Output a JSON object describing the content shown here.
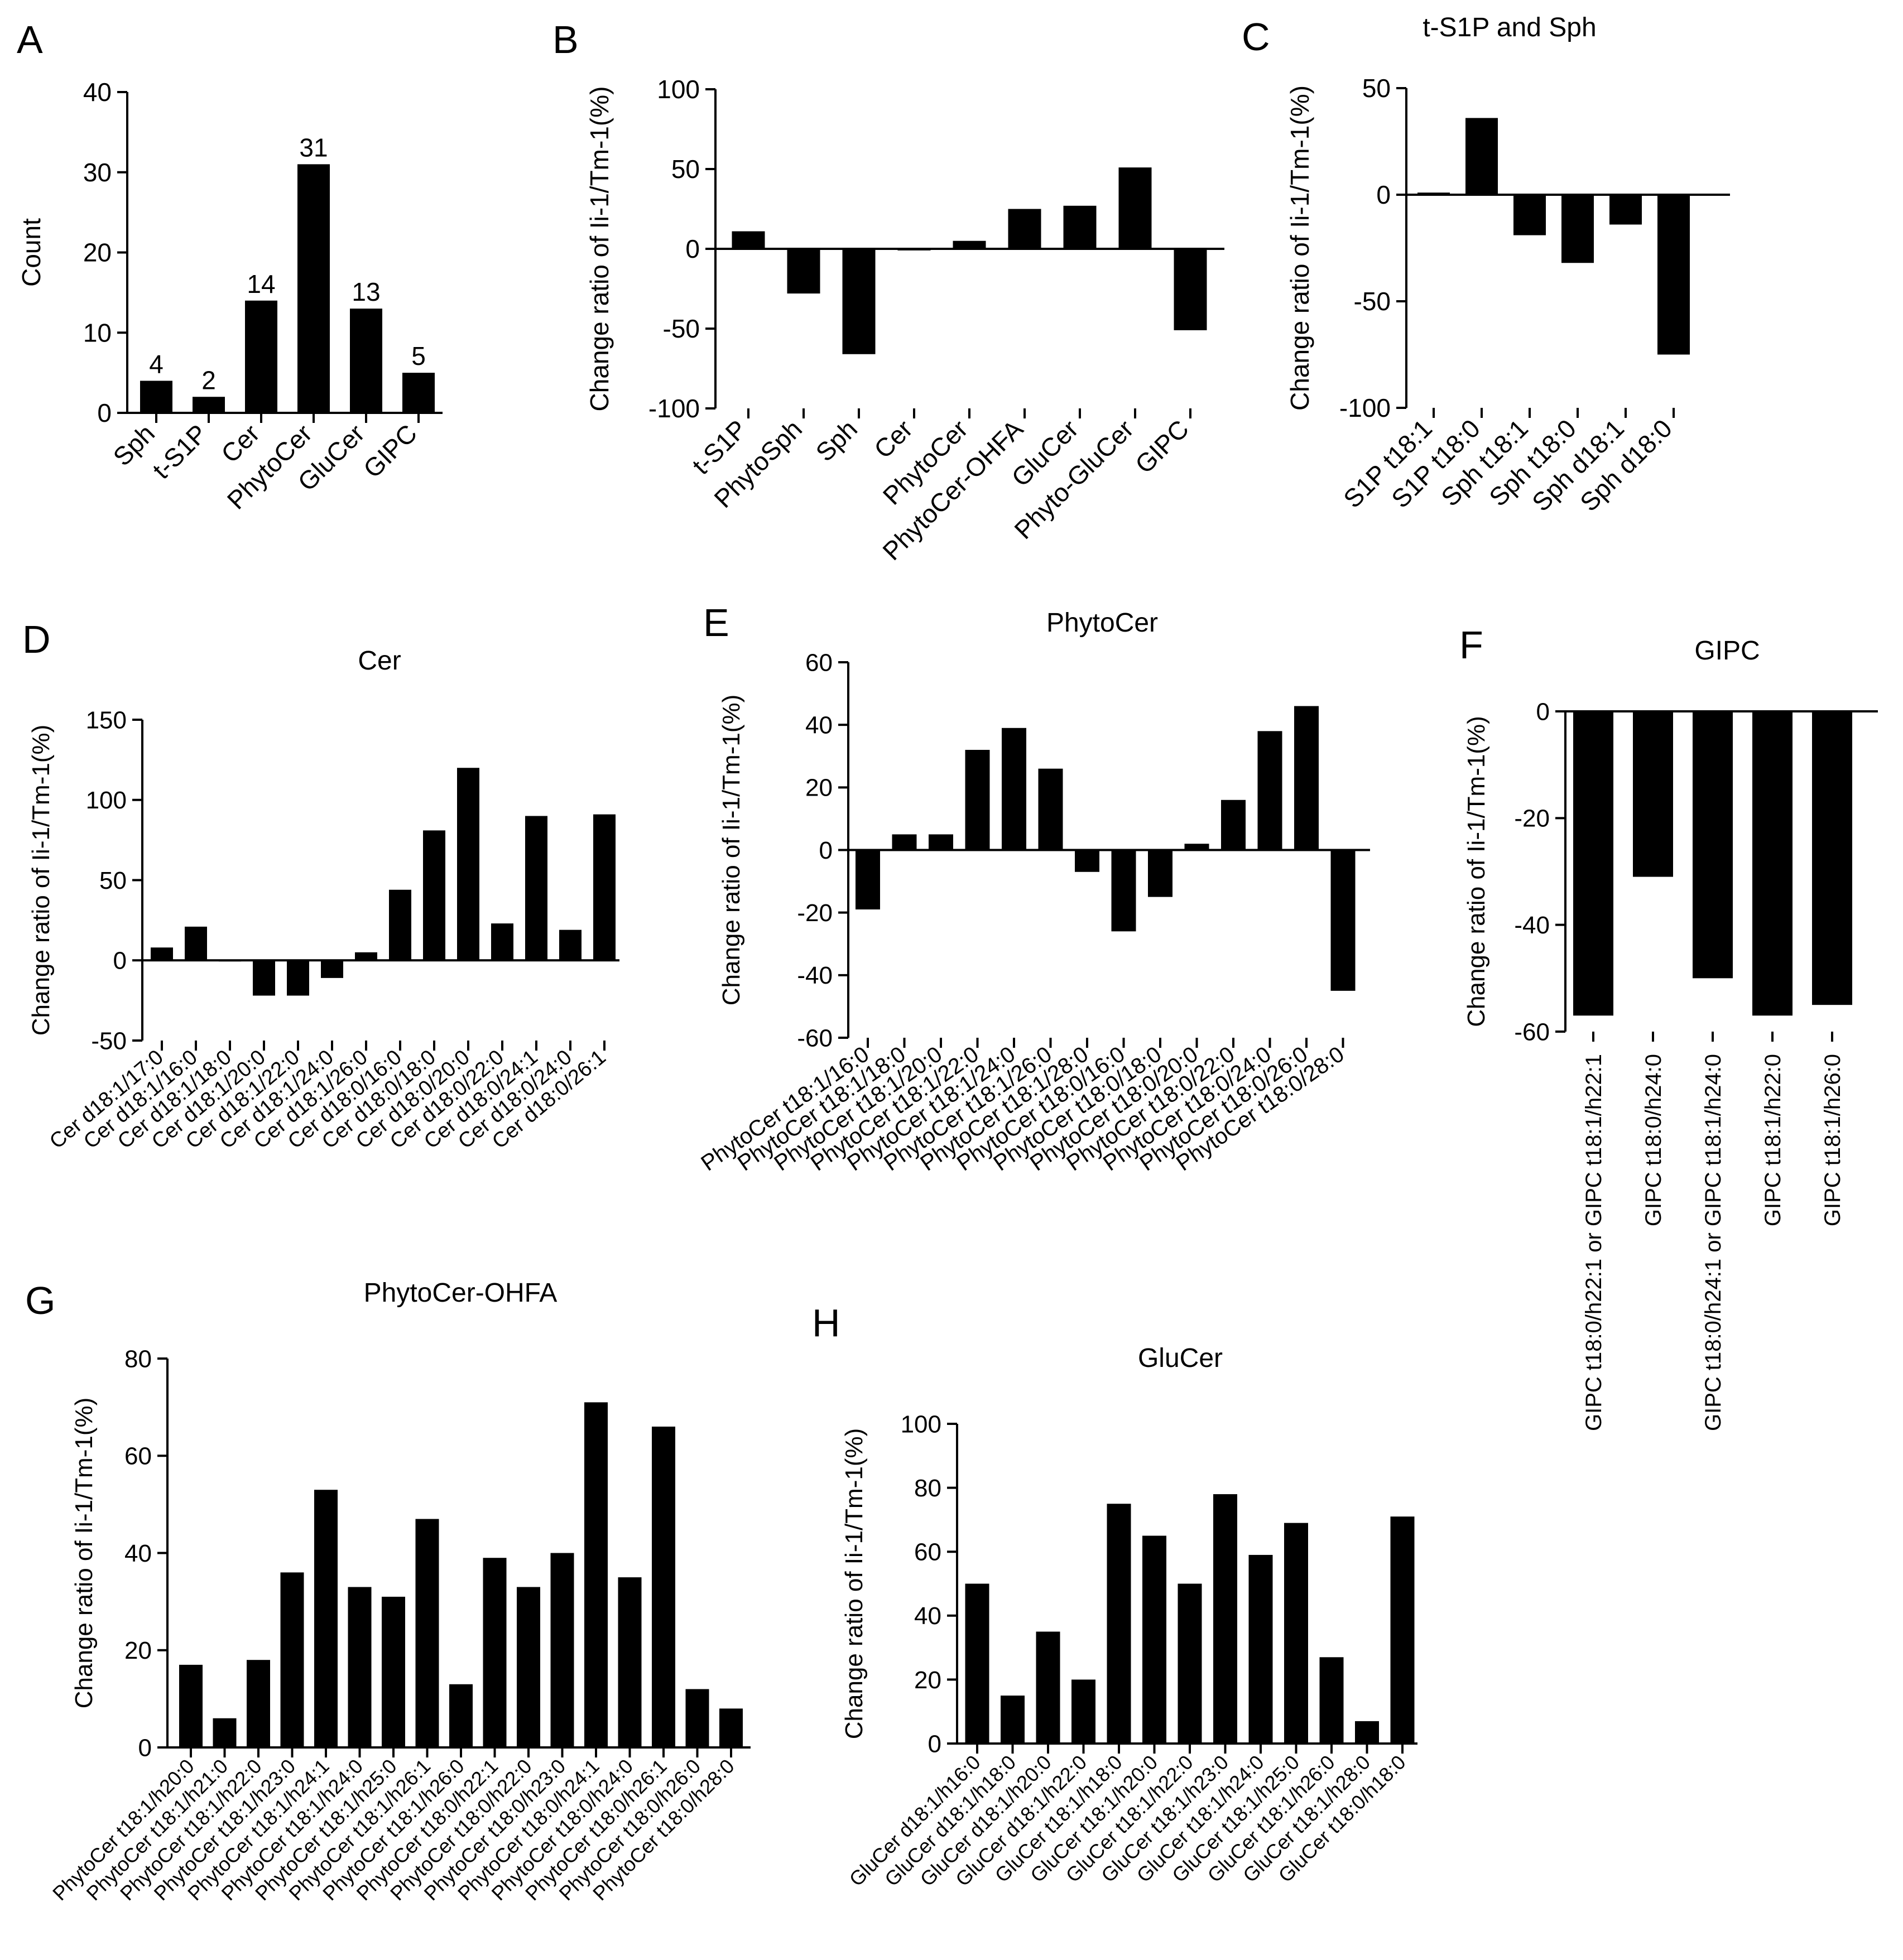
{
  "colors": {
    "bar": "#000000",
    "axis": "#000000",
    "background": "#ffffff"
  },
  "chart_data": [
    {
      "panel": "A",
      "title": "",
      "type": "bar",
      "ylabel": "Count",
      "ylim": [
        0,
        40
      ],
      "yticks": [
        0,
        10,
        20,
        30,
        40
      ],
      "categories": [
        "Sph",
        "t-S1P",
        "Cer",
        "PhytoCer",
        "GluCer",
        "GIPC"
      ],
      "values": [
        4,
        2,
        14,
        31,
        13,
        5
      ],
      "value_labels": [
        "4",
        "2",
        "14",
        "31",
        "13",
        "5"
      ]
    },
    {
      "panel": "B",
      "title": "",
      "type": "bar",
      "ylabel": "Change ratio of Ii-1/Tm-1(%)",
      "ylim": [
        -100,
        100
      ],
      "yticks": [
        -100,
        -50,
        0,
        50,
        100
      ],
      "categories": [
        "t-S1P",
        "PhytoSph",
        "Sph",
        "Cer",
        "PhytoCer",
        "PhytoCer-OHFA",
        "GluCer",
        "Phyto-GluCer",
        "GIPC"
      ],
      "values": [
        11,
        -28,
        -66,
        -1,
        5,
        25,
        27,
        51,
        -51
      ]
    },
    {
      "panel": "C",
      "title": "t-S1P and Sph",
      "type": "bar",
      "ylabel": "Change ratio of Ii-1/Tm-1(%)",
      "ylim": [
        -100,
        50
      ],
      "yticks": [
        -100,
        -50,
        0,
        50
      ],
      "categories": [
        "S1P t18:1",
        "S1P t18:0",
        "Sph t18:1",
        "Sph t18:0",
        "Sph d18:1",
        "Sph d18:0"
      ],
      "values": [
        1,
        36,
        -19,
        -32,
        -14,
        -75
      ]
    },
    {
      "panel": "D",
      "title": "Cer",
      "type": "bar",
      "ylabel": "Change ratio of Ii-1/Tm-1(%)",
      "ylim": [
        -50,
        150
      ],
      "yticks": [
        -50,
        0,
        50,
        100,
        150
      ],
      "categories": [
        "Cer d18:1/17:0",
        "Cer d18:1/16:0",
        "Cer d18:1/18:0",
        "Cer d18:1/20:0",
        "Cer d18:1/22:0",
        "Cer d18:1/24:0",
        "Cer d18:1/26:0",
        "Cer d18:0/16:0",
        "Cer d18:0/18:0",
        "Cer d18:0/20:0",
        "Cer d18:0/22:0",
        "Cer d18:0/24:1",
        "Cer d18:0/24:0",
        "Cer d18:0/26:1"
      ],
      "values": [
        8,
        21,
        0,
        -22,
        -22,
        -11,
        5,
        44,
        81,
        120,
        23,
        90,
        19,
        91
      ]
    },
    {
      "panel": "E",
      "title": "PhytoCer",
      "type": "bar",
      "ylabel": "Change ratio of Ii-1/Tm-1(%)",
      "ylim": [
        -60,
        60
      ],
      "yticks": [
        -60,
        -40,
        -20,
        0,
        20,
        40,
        60
      ],
      "categories": [
        "PhytoCer t18:1/16:0",
        "PhytoCer t18:1/18:0",
        "PhytoCer t18:1/20:0",
        "PhytoCer t18:1/22:0",
        "PhytoCer t18:1/24:0",
        "PhytoCer t18:1/26:0",
        "PhytoCer t18:1/28:0",
        "PhytoCer t18:0/16:0",
        "PhytoCer t18:0/18:0",
        "PhytoCer t18:0/20:0",
        "PhytoCer t18:0/22:0",
        "PhytoCer t18:0/24:0",
        "PhytoCer t18:0/26:0",
        "PhytoCer t18:0/28:0"
      ],
      "values": [
        -19,
        5,
        5,
        32,
        39,
        26,
        -7,
        -26,
        -15,
        2,
        16,
        38,
        46,
        -45
      ]
    },
    {
      "panel": "F",
      "title": "GIPC",
      "type": "bar",
      "ylabel": "Change ratio of Ii-1/Tm-1(%)",
      "ylim": [
        -60,
        0
      ],
      "yticks": [
        -60,
        -40,
        -20,
        0
      ],
      "categories": [
        "GIPC t18:0/h22:1 or GIPC t18:1/h22:1",
        "GIPC t18:0/h24:0",
        "GIPC t18:0/h24:1 or GIPC t18:1/h24:0",
        "GIPC t18:1/h22:0",
        "GIPC t18:1/h26:0"
      ],
      "values": [
        -57,
        -31,
        -50,
        -57,
        -55
      ]
    },
    {
      "panel": "G",
      "title": "PhytoCer-OHFA",
      "type": "bar",
      "ylabel": "Change ratio of Ii-1/Tm-1(%)",
      "ylim": [
        0,
        80
      ],
      "yticks": [
        0,
        20,
        40,
        60,
        80
      ],
      "categories": [
        "PhytoCer t18:1/h20:0",
        "PhytoCer t18:1/h21:0",
        "PhytoCer t18:1/h22:0",
        "PhytoCer t18:1/h23:0",
        "PhytoCer t18:1/h24:1",
        "PhytoCer t18:1/h24:0",
        "PhytoCer t18:1/h25:0",
        "PhytoCer t18:1/h26:1",
        "PhytoCer t18:1/h26:0",
        "PhytoCer t18:0/h22:1",
        "PhytoCer t18:0/h22:0",
        "PhytoCer t18:0/h23:0",
        "PhytoCer t18:0/h24:1",
        "PhytoCer t18:0/h24:0",
        "PhytoCer t18:0/h26:1",
        "PhytoCer t18:0/h26:0",
        "PhytoCer t18:0/h28:0"
      ],
      "values": [
        17,
        6,
        18,
        36,
        53,
        33,
        31,
        47,
        13,
        39,
        33,
        40,
        71,
        35,
        66,
        12,
        8
      ]
    },
    {
      "panel": "H",
      "title": "GluCer",
      "type": "bar",
      "ylabel": "Change ratio of Ii-1/Tm-1(%)",
      "ylim": [
        0,
        100
      ],
      "yticks": [
        0,
        20,
        40,
        60,
        80,
        100
      ],
      "categories": [
        "GluCer d18:1/h16:0",
        "GluCer d18:1/h18:0",
        "GluCer d18:1/h20:0",
        "GluCer d18:1/h22:0",
        "GluCer t18:1/h18:0",
        "GluCer t18:1/h20:0",
        "GluCer t18:1/h22:0",
        "GluCer t18:1/h23:0",
        "GluCer t18:1/h24:0",
        "GluCer t18:1/h25:0",
        "GluCer t18:1/h26:0",
        "GluCer t18:1/h28:0",
        "GluCer t18:0/h18:0"
      ],
      "values": [
        50,
        15,
        35,
        20,
        75,
        65,
        50,
        78,
        59,
        69,
        27,
        7,
        71
      ]
    }
  ]
}
